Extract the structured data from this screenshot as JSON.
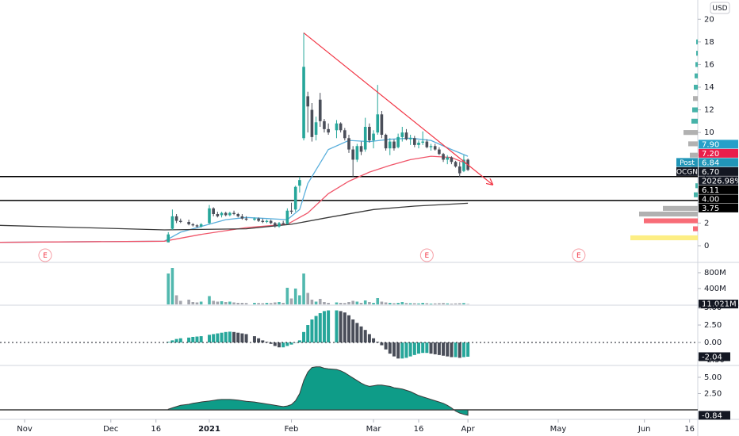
{
  "chart_data": {
    "type": "candlestick",
    "currency": "USD",
    "x": [
      "2020-12-21",
      "2020-12-22",
      "2020-12-23",
      "2020-12-24",
      "2020-12-28",
      "2020-12-29",
      "2020-12-30",
      "2020-12-31",
      "2021-01-04",
      "2021-01-05",
      "2021-01-06",
      "2021-01-07",
      "2021-01-08",
      "2021-01-11",
      "2021-01-12",
      "2021-01-13",
      "2021-01-14",
      "2021-01-15",
      "2021-01-19",
      "2021-01-20",
      "2021-01-21",
      "2021-01-22",
      "2021-01-25",
      "2021-01-26",
      "2021-01-27",
      "2021-01-28",
      "2021-01-29",
      "2021-02-01",
      "2021-02-02",
      "2021-02-03",
      "2021-02-04",
      "2021-02-05",
      "2021-02-08",
      "2021-02-09",
      "2021-02-10",
      "2021-02-11",
      "2021-02-12",
      "2021-02-16",
      "2021-02-17",
      "2021-02-18",
      "2021-02-19",
      "2021-02-22",
      "2021-02-23",
      "2021-02-24",
      "2021-02-25",
      "2021-02-26",
      "2021-03-01",
      "2021-03-02",
      "2021-03-03",
      "2021-03-04",
      "2021-03-05",
      "2021-03-08",
      "2021-03-09",
      "2021-03-10",
      "2021-03-11",
      "2021-03-12",
      "2021-03-15",
      "2021-03-16",
      "2021-03-17",
      "2021-03-18",
      "2021-03-19",
      "2021-03-22",
      "2021-03-23",
      "2021-03-24",
      "2021-03-25",
      "2021-03-26",
      "2021-03-29",
      "2021-03-30",
      "2021-03-31",
      "2021-04-01"
    ],
    "open": [
      0.3,
      1.5,
      2.6,
      2.2,
      2.1,
      1.9,
      1.8,
      1.7,
      2.0,
      3.3,
      2.8,
      2.7,
      2.9,
      2.7,
      2.9,
      2.8,
      2.6,
      2.4,
      2.3,
      2.4,
      2.2,
      2.1,
      2.2,
      2.0,
      1.7,
      2.0,
      1.9,
      3.1,
      3.2,
      5.3,
      9.5,
      13.2,
      12.0,
      9.8,
      12.9,
      11.0,
      10.3,
      10.2,
      10.8,
      10.2,
      9.5,
      8.5,
      7.6,
      8.8,
      8.5,
      10.5,
      9.3,
      10.0,
      11.6,
      9.8,
      8.6,
      9.2,
      8.7,
      9.6,
      10.0,
      9.4,
      9.5,
      8.9,
      9.1,
      9.2,
      8.7,
      8.8,
      8.5,
      8.1,
      7.6,
      7.8,
      7.4,
      7.0,
      6.6,
      7.6
    ],
    "high": [
      1.2,
      3.2,
      2.8,
      2.4,
      2.3,
      2.0,
      1.9,
      2.0,
      3.6,
      3.4,
      3.0,
      3.0,
      3.0,
      3.0,
      3.1,
      2.9,
      2.8,
      2.6,
      2.5,
      2.5,
      2.4,
      2.3,
      2.3,
      2.1,
      2.1,
      2.2,
      3.3,
      3.8,
      5.3,
      6.1,
      18.8,
      13.6,
      12.6,
      11.4,
      13.5,
      11.2,
      10.8,
      11.1,
      10.9,
      10.4,
      9.8,
      8.8,
      9.0,
      9.2,
      11.3,
      10.8,
      10.2,
      14.2,
      11.9,
      9.9,
      9.5,
      9.4,
      9.9,
      10.5,
      10.3,
      9.8,
      9.7,
      9.3,
      10.1,
      9.4,
      9.0,
      9.0,
      8.7,
      8.2,
      8.0,
      7.9,
      7.5,
      7.4,
      8.0,
      7.7
    ],
    "low": [
      0.3,
      1.4,
      2.0,
      2.0,
      1.8,
      1.7,
      1.6,
      1.6,
      1.9,
      2.6,
      2.5,
      2.5,
      2.6,
      2.6,
      2.7,
      2.5,
      2.3,
      2.2,
      2.2,
      2.1,
      2.0,
      2.0,
      1.9,
      1.6,
      1.6,
      1.8,
      1.9,
      2.8,
      3.0,
      4.7,
      9.3,
      10.0,
      9.2,
      9.3,
      10.5,
      10.0,
      9.8,
      9.5,
      10.0,
      9.3,
      8.2,
      6.1,
      7.4,
      8.0,
      8.3,
      9.1,
      8.6,
      9.8,
      9.5,
      8.4,
      8.0,
      8.4,
      8.6,
      9.2,
      9.3,
      8.9,
      8.7,
      8.6,
      8.9,
      8.6,
      8.4,
      8.4,
      8.0,
      7.4,
      7.2,
      7.2,
      6.9,
      6.1,
      6.5,
      6.6
    ],
    "close": [
      1.0,
      2.6,
      2.2,
      2.1,
      1.9,
      1.8,
      1.7,
      1.9,
      3.3,
      2.8,
      2.6,
      2.9,
      2.7,
      2.9,
      2.8,
      2.6,
      2.4,
      2.3,
      2.4,
      2.2,
      2.1,
      2.2,
      2.0,
      1.7,
      2.0,
      1.9,
      3.1,
      3.0,
      5.2,
      5.8,
      15.8,
      12.3,
      9.6,
      10.9,
      11.0,
      10.3,
      10.0,
      10.8,
      10.2,
      9.5,
      8.5,
      7.6,
      8.8,
      8.3,
      10.5,
      9.3,
      9.9,
      11.6,
      9.8,
      8.6,
      9.2,
      8.6,
      9.6,
      10.0,
      9.4,
      9.5,
      8.9,
      9.1,
      9.2,
      8.7,
      8.8,
      8.5,
      8.1,
      7.6,
      7.8,
      7.4,
      7.0,
      6.4,
      7.6,
      6.7
    ],
    "up_color": "#26a69a",
    "down_color": "#4a4e59",
    "xlim": [
      "2020-10-23",
      "2021-06-18"
    ],
    "xticks": [
      {
        "value": "2020-11-02",
        "label": "Nov"
      },
      {
        "value": "2020-12-01",
        "label": "Dec"
      },
      {
        "value": "2020-12-16",
        "label": "16"
      },
      {
        "value": "2021-01-04",
        "label": "2021"
      },
      {
        "value": "2021-02-01",
        "label": "Feb"
      },
      {
        "value": "2021-03-01",
        "label": "Mar"
      },
      {
        "value": "2021-03-16",
        "label": "16"
      },
      {
        "value": "2021-04-01",
        "label": "Apr"
      },
      {
        "value": "2021-05-03",
        "label": "May"
      },
      {
        "value": "2021-06-01",
        "label": "Jun"
      },
      {
        "value": "2021-06-16",
        "label": "16"
      }
    ],
    "ylim": [
      -1.4,
      21.7
    ],
    "yticks": [
      0,
      2,
      4,
      6,
      8,
      10,
      12,
      14,
      16,
      18,
      20
    ],
    "series": [
      {
        "color": "#5aafdc",
        "x": [
          "2020-10-23",
          "2020-12-18",
          "2020-12-24",
          "2020-12-31",
          "2021-01-08",
          "2021-01-15",
          "2021-01-22",
          "2021-01-29",
          "2021-02-03",
          "2021-02-05",
          "2021-02-12",
          "2021-02-19",
          "2021-02-26",
          "2021-03-05",
          "2021-03-12",
          "2021-03-19",
          "2021-03-26",
          "2021-04-01"
        ],
        "values": [
          0.3,
          0.4,
          1.2,
          1.7,
          2.3,
          2.5,
          2.4,
          2.3,
          3.2,
          5.5,
          8.5,
          9.3,
          9.2,
          9.4,
          9.5,
          9.3,
          8.5,
          7.9
        ]
      },
      {
        "color": "#f0566a",
        "x": [
          "2020-10-23",
          "2020-12-18",
          "2020-12-31",
          "2021-01-15",
          "2021-01-29",
          "2021-02-05",
          "2021-02-12",
          "2021-02-19",
          "2021-02-26",
          "2021-03-05",
          "2021-03-12",
          "2021-03-19",
          "2021-03-26",
          "2021-04-01"
        ],
        "values": [
          0.3,
          0.4,
          1.0,
          1.6,
          1.9,
          2.9,
          4.6,
          5.7,
          6.5,
          7.1,
          7.6,
          7.9,
          7.8,
          7.2
        ]
      },
      {
        "color": "#3a3a3a",
        "x": [
          "2020-10-23",
          "2020-11-20",
          "2020-12-18",
          "2021-01-15",
          "2021-02-01",
          "2021-02-12",
          "2021-03-01",
          "2021-03-15",
          "2021-04-01"
        ],
        "values": [
          1.8,
          1.6,
          1.4,
          1.5,
          1.9,
          2.5,
          3.2,
          3.5,
          3.75
        ]
      }
    ],
    "trendline": {
      "color": "#f23645",
      "x": [
        "2021-02-04",
        "2021-04-09"
      ],
      "values": [
        18.8,
        5.4
      ]
    },
    "hlines": [
      {
        "value": 6.11,
        "label": "6.11"
      },
      {
        "value": 4,
        "label": "4.00"
      }
    ],
    "price_labels": [
      {
        "value": 7.9,
        "label": "7.90",
        "color": "#26a0c9"
      },
      {
        "value": 7.2,
        "label": "7.20",
        "color": "#e91e4b"
      },
      {
        "value": 6.84,
        "label": "6.84",
        "tag": "Post",
        "color": "#2196b8"
      },
      {
        "value": 6.7,
        "label": "6.70",
        "tag": "OCGN",
        "color": "#131722",
        "change": {
          "value": 2026.98,
          "label": "2026.98%"
        }
      },
      {
        "value": 3.75,
        "label": "3.75",
        "color": "#000000"
      }
    ],
    "events": [
      {
        "x": "2020-11-09",
        "label": "E"
      },
      {
        "x": "2021-03-18",
        "label": "E"
      },
      {
        "x": "2021-05-10",
        "label": "E"
      }
    ],
    "volume_profile": {
      "prices": [
        0.7,
        1.5,
        2.2,
        2.8,
        3.3,
        4.5,
        5.3,
        7.0,
        8.0,
        9.0,
        10.0,
        11.0,
        12.0,
        13.0,
        14.0,
        15.0,
        16.0,
        17.0,
        18.0
      ],
      "values": [
        85,
        6,
        68,
        74,
        44,
        5,
        3,
        8,
        10,
        12,
        18,
        8,
        7,
        6,
        5,
        4,
        3,
        2,
        2
      ],
      "colors": [
        "#fdeb6e",
        "#f7525f",
        "#f7525f",
        "#a3a3a3",
        "#a3a3a3",
        "#26a69a",
        "#26a69a",
        "#a3a3a3",
        "#a3a3a3",
        "#a3a3a3",
        "#a3a3a3",
        "#26a69a",
        "#26a69a",
        "#a3a3a3",
        "#26a69a",
        "#26a69a",
        "#26a69a",
        "#26a69a",
        "#26a69a"
      ]
    },
    "panes": [
      {
        "type": "bar",
        "up_color": "#26a69a",
        "down_color": "#8c8f99",
        "values": [
          780,
          920,
          230,
          90,
          120,
          60,
          50,
          70,
          210,
          90,
          70,
          80,
          60,
          70,
          50,
          40,
          40,
          35,
          40,
          35,
          30,
          40,
          35,
          50,
          60,
          40,
          420,
          150,
          400,
          230,
          780,
          290,
          120,
          70,
          140,
          60,
          40,
          50,
          40,
          35,
          60,
          90,
          70,
          40,
          100,
          60,
          40,
          160,
          70,
          50,
          40,
          30,
          40,
          60,
          35,
          30,
          30,
          25,
          40,
          30,
          20,
          25,
          30,
          35,
          25,
          20,
          25,
          30,
          35,
          11.021
        ],
        "last_value_label": "11.021M",
        "ylim": [
          0,
          1040
        ],
        "yticks": [
          {
            "value": 400,
            "label": "400M"
          },
          {
            "value": 800,
            "label": "800M"
          }
        ]
      },
      {
        "type": "histogram",
        "rising_color": "#26a69a",
        "falling_color": "#4a4e59",
        "values": [
          0.1,
          0.3,
          0.5,
          0.6,
          0.7,
          0.8,
          0.85,
          0.9,
          1.1,
          1.2,
          1.3,
          1.4,
          1.5,
          1.55,
          1.5,
          1.4,
          1.3,
          1.2,
          0.9,
          0.6,
          0.3,
          0.1,
          -0.2,
          -0.5,
          -0.7,
          -0.7,
          -0.5,
          -0.3,
          0.0,
          0.3,
          1.5,
          2.5,
          3.3,
          3.8,
          4.2,
          4.5,
          4.6,
          4.6,
          4.5,
          4.3,
          3.9,
          3.3,
          2.8,
          2.3,
          1.8,
          1.2,
          0.6,
          0.1,
          -0.4,
          -1.0,
          -1.6,
          -2.0,
          -2.3,
          -2.3,
          -2.2,
          -2.0,
          -1.8,
          -1.6,
          -1.5,
          -1.5,
          -1.6,
          -1.7,
          -1.8,
          -1.9,
          -2.0,
          -2.1,
          -2.1,
          -2.2,
          -2.1,
          -2.04
        ],
        "ylim": [
          -3.18,
          5.23
        ],
        "yticks": [
          {
            "value": 5,
            "label": "5.00"
          },
          {
            "value": 2.5,
            "label": "2.50"
          },
          {
            "value": 0,
            "label": "0.00"
          },
          {
            "value": -2.5,
            "label": "-2.50"
          }
        ]
      },
      {
        "type": "area",
        "color": "#0e9c88",
        "values": [
          0.1,
          0.3,
          0.5,
          0.7,
          0.85,
          1.0,
          1.1,
          1.2,
          1.35,
          1.45,
          1.55,
          1.6,
          1.6,
          1.6,
          1.55,
          1.5,
          1.4,
          1.3,
          1.2,
          1.1,
          1.0,
          0.9,
          0.8,
          0.7,
          0.6,
          0.5,
          0.6,
          0.8,
          1.4,
          2.5,
          4.5,
          5.8,
          6.5,
          6.6,
          6.6,
          6.4,
          6.3,
          6.2,
          6.0,
          5.7,
          5.3,
          4.9,
          4.5,
          4.1,
          3.8,
          3.6,
          3.7,
          3.8,
          3.8,
          3.7,
          3.6,
          3.4,
          3.3,
          3.2,
          3.0,
          2.8,
          2.5,
          2.2,
          2.0,
          1.8,
          1.6,
          1.4,
          1.2,
          1.0,
          0.7,
          0.3,
          -0.2,
          -0.5,
          -0.7,
          -0.84
        ],
        "ylim": [
          -1.34,
          6.7
        ],
        "yticks": [
          {
            "value": 5,
            "label": "5.00"
          },
          {
            "value": 2.5,
            "label": "2.50"
          }
        ]
      }
    ]
  }
}
